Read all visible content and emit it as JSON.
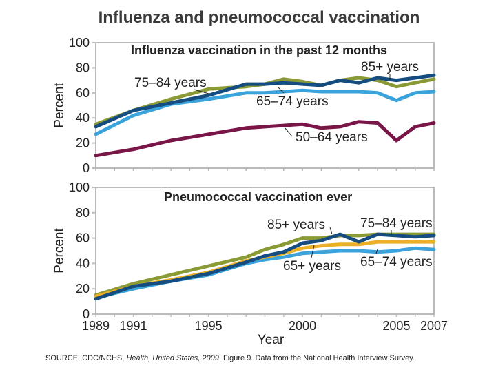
{
  "title": "Influenza and pneumococcal vaccination",
  "source": {
    "prefix": "SOURCE: CDC/NCHS, ",
    "italic": "Health, United States, 2009",
    "suffix": ". Figure 9. Data from the National Health Interview Survey."
  },
  "colors": {
    "age_50_64": "#7a1548",
    "age_65_74": "#3aa3dc",
    "age_75_84": "#8a9a35",
    "age_85_plus": "#164d80",
    "age_65_plus": "#eab128"
  },
  "chart_data": [
    {
      "type": "line",
      "title": "Influenza vaccination in the past 12 months",
      "ylabel": "Percent",
      "xlabel": "",
      "ylim": [
        0,
        100
      ],
      "yticks": [
        0,
        20,
        40,
        60,
        80,
        100
      ],
      "xlim": [
        1989,
        2007
      ],
      "x": [
        1989,
        1991,
        1993,
        1995,
        1997,
        1998,
        1999,
        2000,
        2001,
        2002,
        2003,
        2004,
        2005,
        2006,
        2007
      ],
      "series": [
        {
          "key": "age_50_64",
          "name": "50–64 years",
          "values": [
            10,
            15,
            22,
            27,
            32,
            33,
            34,
            35,
            32,
            33,
            37,
            36,
            22,
            33,
            36
          ]
        },
        {
          "key": "age_65_74",
          "name": "65–74 years",
          "values": [
            27,
            42,
            51,
            55,
            60,
            60,
            61,
            62,
            61,
            61,
            61,
            60,
            54,
            60,
            61
          ]
        },
        {
          "key": "age_75_84",
          "name": "75–84 years",
          "values": [
            35,
            46,
            55,
            63,
            65,
            67,
            71,
            69,
            66,
            70,
            72,
            70,
            65,
            68,
            71
          ]
        },
        {
          "key": "age_85_plus",
          "name": "85+ years",
          "values": [
            33,
            46,
            52,
            58,
            67,
            67,
            68,
            67,
            66,
            70,
            68,
            72,
            70,
            72,
            74
          ]
        }
      ],
      "annotations": [
        "85+ years",
        "75–84 years",
        "65–74 years",
        "50–64 years"
      ]
    },
    {
      "type": "line",
      "title": "Pneumococcal vaccination ever",
      "ylabel": "Percent",
      "xlabel": "Year",
      "ylim": [
        0,
        100
      ],
      "yticks": [
        0,
        20,
        40,
        60,
        80,
        100
      ],
      "xlim": [
        1989,
        2007
      ],
      "xticks": [
        "1989",
        "1991",
        "1995",
        "2000",
        "2005",
        "2007"
      ],
      "x": [
        1989,
        1991,
        1993,
        1995,
        1997,
        1998,
        1999,
        2000,
        2001,
        2002,
        2003,
        2004,
        2005,
        2006,
        2007
      ],
      "series": [
        {
          "key": "age_75_84",
          "name": "75–84 years",
          "values": [
            15,
            24,
            31,
            38,
            45,
            51,
            55,
            60,
            60,
            62,
            62,
            63,
            63,
            63,
            63
          ]
        },
        {
          "key": "age_65_74",
          "name": "65–74 years",
          "values": [
            13,
            20,
            26,
            31,
            40,
            43,
            45,
            48,
            49,
            50,
            50,
            49,
            50,
            52,
            51
          ]
        },
        {
          "key": "age_65_plus",
          "name": "65+ years",
          "values": [
            14,
            22,
            27,
            33,
            42,
            45,
            48,
            52,
            54,
            55,
            55,
            57,
            57,
            57,
            57
          ]
        },
        {
          "key": "age_85_plus",
          "name": "85+ years",
          "values": [
            12,
            22,
            26,
            32,
            41,
            46,
            49,
            56,
            58,
            63,
            57,
            63,
            62,
            61,
            62
          ]
        }
      ],
      "annotations": [
        "85+ years",
        "75–84 years",
        "65+ years",
        "65–74 years"
      ]
    }
  ]
}
